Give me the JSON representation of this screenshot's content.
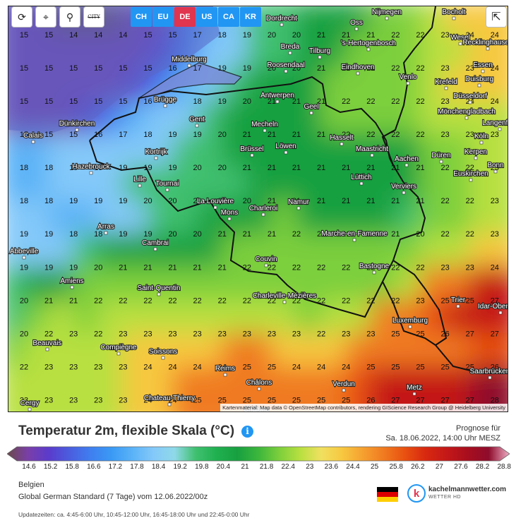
{
  "toolbar": {
    "buttons": [
      {
        "name": "refresh-icon",
        "glyph": "⟳"
      },
      {
        "name": "location-pin-icon",
        "glyph": "⌖"
      },
      {
        "name": "zoom-icon",
        "glyph": "⚲"
      },
      {
        "name": "city-toggle",
        "label": "CITY"
      }
    ],
    "regions": [
      {
        "label": "CH",
        "active": false
      },
      {
        "label": "EU",
        "active": false
      },
      {
        "label": "DE",
        "active": true
      },
      {
        "label": "US",
        "active": false
      },
      {
        "label": "CA",
        "active": false
      },
      {
        "label": "KR",
        "active": false
      }
    ],
    "share_icon": "share-icon"
  },
  "map": {
    "attribution": "Kartenmaterial: Map data © OpenStreetMap contributors, rendering GIScience Research Group @ Heidelberg University",
    "grid_values": [
      [
        15,
        15,
        14,
        14,
        14,
        15,
        15,
        17,
        18,
        19,
        20,
        20,
        21,
        21,
        21,
        22,
        22,
        23,
        24,
        24
      ],
      [
        15,
        15,
        15,
        15,
        15,
        15,
        16,
        17,
        19,
        19,
        20,
        20,
        21,
        21,
        22,
        22,
        22,
        23,
        23,
        24
      ],
      [
        15,
        15,
        15,
        15,
        15,
        16,
        17,
        18,
        19,
        20,
        21,
        21,
        21,
        22,
        22,
        22,
        22,
        23,
        24,
        24
      ],
      [
        15,
        15,
        15,
        16,
        17,
        18,
        19,
        19,
        20,
        21,
        21,
        21,
        21,
        22,
        22,
        22,
        22,
        23,
        23,
        23
      ],
      [
        18,
        18,
        19,
        19,
        19,
        19,
        19,
        20,
        20,
        21,
        21,
        21,
        21,
        21,
        21,
        21,
        21,
        22,
        22,
        23
      ],
      [
        18,
        18,
        19,
        19,
        19,
        20,
        20,
        20,
        20,
        20,
        21,
        21,
        21,
        21,
        21,
        21,
        21,
        22,
        22,
        23
      ],
      [
        19,
        19,
        18,
        18,
        19,
        19,
        20,
        20,
        21,
        21,
        21,
        22,
        21,
        21,
        21,
        21,
        20,
        22,
        22,
        23
      ],
      [
        19,
        19,
        19,
        20,
        21,
        21,
        21,
        21,
        21,
        22,
        22,
        22,
        22,
        22,
        22,
        22,
        22,
        23,
        23,
        24
      ],
      [
        20,
        21,
        21,
        22,
        22,
        22,
        22,
        22,
        22,
        22,
        22,
        22,
        22,
        22,
        22,
        22,
        23,
        25,
        25,
        27
      ],
      [
        20,
        22,
        23,
        22,
        23,
        23,
        23,
        23,
        23,
        23,
        23,
        23,
        22,
        23,
        23,
        25,
        25,
        26,
        27,
        27
      ],
      [
        22,
        23,
        23,
        23,
        23,
        24,
        24,
        24,
        24,
        25,
        25,
        24,
        24,
        24,
        25,
        25,
        25,
        25,
        25,
        26
      ],
      [
        23,
        23,
        23,
        23,
        23,
        24,
        24,
        25,
        25,
        25,
        25,
        25,
        25,
        25,
        26,
        27,
        27,
        27,
        27,
        28
      ]
    ],
    "cities": [
      {
        "name": "Dordrecht",
        "gx": 387,
        "gy": 18
      },
      {
        "name": "Nijmegen",
        "gx": 536,
        "gy": 9
      },
      {
        "name": "Bocholt",
        "gx": 631,
        "gy": 9
      },
      {
        "name": "Oss",
        "gx": 493,
        "gy": 24
      },
      {
        "name": "Wesel",
        "gx": 640,
        "gy": 45
      },
      {
        "name": "Breda",
        "gx": 399,
        "gy": 58
      },
      {
        "name": "'s-Hertogenbosch",
        "gx": 510,
        "gy": 53
      },
      {
        "name": "Tilburg",
        "gx": 441,
        "gy": 64
      },
      {
        "name": "Recklinghausen",
        "gx": 679,
        "gy": 52
      },
      {
        "name": "Middelburg",
        "gx": 256,
        "gy": 76
      },
      {
        "name": "Roosendaal",
        "gx": 393,
        "gy": 84
      },
      {
        "name": "Eindhoven",
        "gx": 495,
        "gy": 87
      },
      {
        "name": "Essen",
        "gx": 672,
        "gy": 84
      },
      {
        "name": "Venlo",
        "gx": 566,
        "gy": 101
      },
      {
        "name": "Krefeld",
        "gx": 620,
        "gy": 108
      },
      {
        "name": "Duisburg",
        "gx": 667,
        "gy": 104
      },
      {
        "name": "Antwerpen",
        "gx": 381,
        "gy": 127
      },
      {
        "name": "Brügge",
        "gx": 222,
        "gy": 133
      },
      {
        "name": "Düsseldorf",
        "gx": 654,
        "gy": 128
      },
      {
        "name": "Geel",
        "gx": 429,
        "gy": 143
      },
      {
        "name": "Mönchengladbach",
        "gx": 649,
        "gy": 150
      },
      {
        "name": "Gent",
        "gx": 267,
        "gy": 161
      },
      {
        "name": "Dünkirchen",
        "gx": 97,
        "gy": 167
      },
      {
        "name": "Mecheln",
        "gx": 363,
        "gy": 168
      },
      {
        "name": "Langenfeld",
        "gx": 696,
        "gy": 166
      },
      {
        "name": "Calais",
        "gx": 35,
        "gy": 184
      },
      {
        "name": "Köln",
        "gx": 670,
        "gy": 185
      },
      {
        "name": "Hasselt",
        "gx": 472,
        "gy": 187
      },
      {
        "name": "Brüssel",
        "gx": 345,
        "gy": 203
      },
      {
        "name": "Löwen",
        "gx": 393,
        "gy": 199
      },
      {
        "name": "Maastricht",
        "gx": 515,
        "gy": 203
      },
      {
        "name": "Kortrijk",
        "gx": 209,
        "gy": 207
      },
      {
        "name": "Düren",
        "gx": 613,
        "gy": 212
      },
      {
        "name": "Kerpen",
        "gx": 662,
        "gy": 207
      },
      {
        "name": "Aachen",
        "gx": 564,
        "gy": 217
      },
      {
        "name": "Bonn",
        "gx": 690,
        "gy": 226
      },
      {
        "name": "Hazebrouck",
        "gx": 117,
        "gy": 228
      },
      {
        "name": "Lüttich",
        "gx": 500,
        "gy": 243
      },
      {
        "name": "Euskirchen",
        "gx": 655,
        "gy": 238
      },
      {
        "name": "Lille",
        "gx": 186,
        "gy": 246
      },
      {
        "name": "Tournai",
        "gx": 225,
        "gy": 252
      },
      {
        "name": "Verviers",
        "gx": 560,
        "gy": 256
      },
      {
        "name": "La Louvière",
        "gx": 293,
        "gy": 277
      },
      {
        "name": "Namur",
        "gx": 411,
        "gy": 278
      },
      {
        "name": "Charleroi",
        "gx": 361,
        "gy": 287
      },
      {
        "name": "Mons",
        "gx": 313,
        "gy": 293
      },
      {
        "name": "Arras",
        "gx": 138,
        "gy": 313
      },
      {
        "name": "Marche-en-Famenne",
        "gx": 490,
        "gy": 323
      },
      {
        "name": "Cambrai",
        "gx": 208,
        "gy": 336
      },
      {
        "name": "Abbeville",
        "gx": 22,
        "gy": 348
      },
      {
        "name": "Couvin",
        "gx": 365,
        "gy": 359
      },
      {
        "name": "Bastogne",
        "gx": 518,
        "gy": 369
      },
      {
        "name": "Amiens",
        "gx": 90,
        "gy": 390
      },
      {
        "name": "Saint-Quentin",
        "gx": 213,
        "gy": 400
      },
      {
        "name": "Charleville-Mézières",
        "gx": 391,
        "gy": 411
      },
      {
        "name": "Trier",
        "gx": 637,
        "gy": 417
      },
      {
        "name": "Idar-Oberstein",
        "gx": 697,
        "gy": 426
      },
      {
        "name": "Luxemburg",
        "gx": 569,
        "gy": 446
      },
      {
        "name": "Beauvais",
        "gx": 55,
        "gy": 478
      },
      {
        "name": "Compiègne",
        "gx": 156,
        "gy": 484
      },
      {
        "name": "Soissons",
        "gx": 219,
        "gy": 490
      },
      {
        "name": "Reims",
        "gx": 307,
        "gy": 514
      },
      {
        "name": "Saarbrücken",
        "gx": 682,
        "gy": 518
      },
      {
        "name": "Châlons",
        "gx": 355,
        "gy": 534
      },
      {
        "name": "Verdun",
        "gx": 475,
        "gy": 536
      },
      {
        "name": "Metz",
        "gx": 575,
        "gy": 541
      },
      {
        "name": "Chateau-Thierry",
        "gx": 228,
        "gy": 556
      },
      {
        "name": "Cergy",
        "gx": 30,
        "gy": 563
      },
      {
        "name": "Châlons",
        "gx": 351,
        "gy": 572
      }
    ]
  },
  "legend": {
    "title": "Temperatur 2m, flexible Skala (°C)",
    "forecast_label": "Prognose für",
    "forecast_time": "Sa. 18.06.2022, 14:00 Uhr MESZ",
    "ticks": [
      "14.6",
      "15.2",
      "15.8",
      "16.6",
      "17.2",
      "17.8",
      "18.4",
      "19.2",
      "19.8",
      "20.4",
      "21",
      "21.8",
      "22.4",
      "23",
      "23.6",
      "24.4",
      "25",
      "25.8",
      "26.2",
      "27",
      "27.6",
      "28.2",
      "28.8"
    ],
    "colors": [
      "#6b4a4a",
      "#7a3fa8",
      "#5a3ccc",
      "#4a5ee0",
      "#3f7ff0",
      "#3a9af5",
      "#5bb3f7",
      "#84c9f9",
      "#8fd9e8",
      "#40c070",
      "#20b050",
      "#18a040",
      "#3cb63c",
      "#7ccf3c",
      "#b8e040",
      "#f0e060",
      "#f7c840",
      "#f5a030",
      "#f07a20",
      "#e85010",
      "#d82810",
      "#c41818",
      "#a80e1e",
      "#8e0c2c",
      "#f0b0c8"
    ]
  },
  "meta": {
    "region": "Belgien",
    "model": "Global German Standard (7 Tage) vom 12.06.2022/00z",
    "updates": "Updatezeiten: ca. 4:45-6:00 Uhr, 10:45-12:00 Uhr, 16:45-18:00 Uhr und 22:45-0:00 Uhr"
  },
  "brand": {
    "logo_letter": "k",
    "name": "kachelmannwetter.com",
    "subline": "WETTER HD",
    "flag_colors": [
      "#000000",
      "#dd0000",
      "#ffce00"
    ]
  }
}
